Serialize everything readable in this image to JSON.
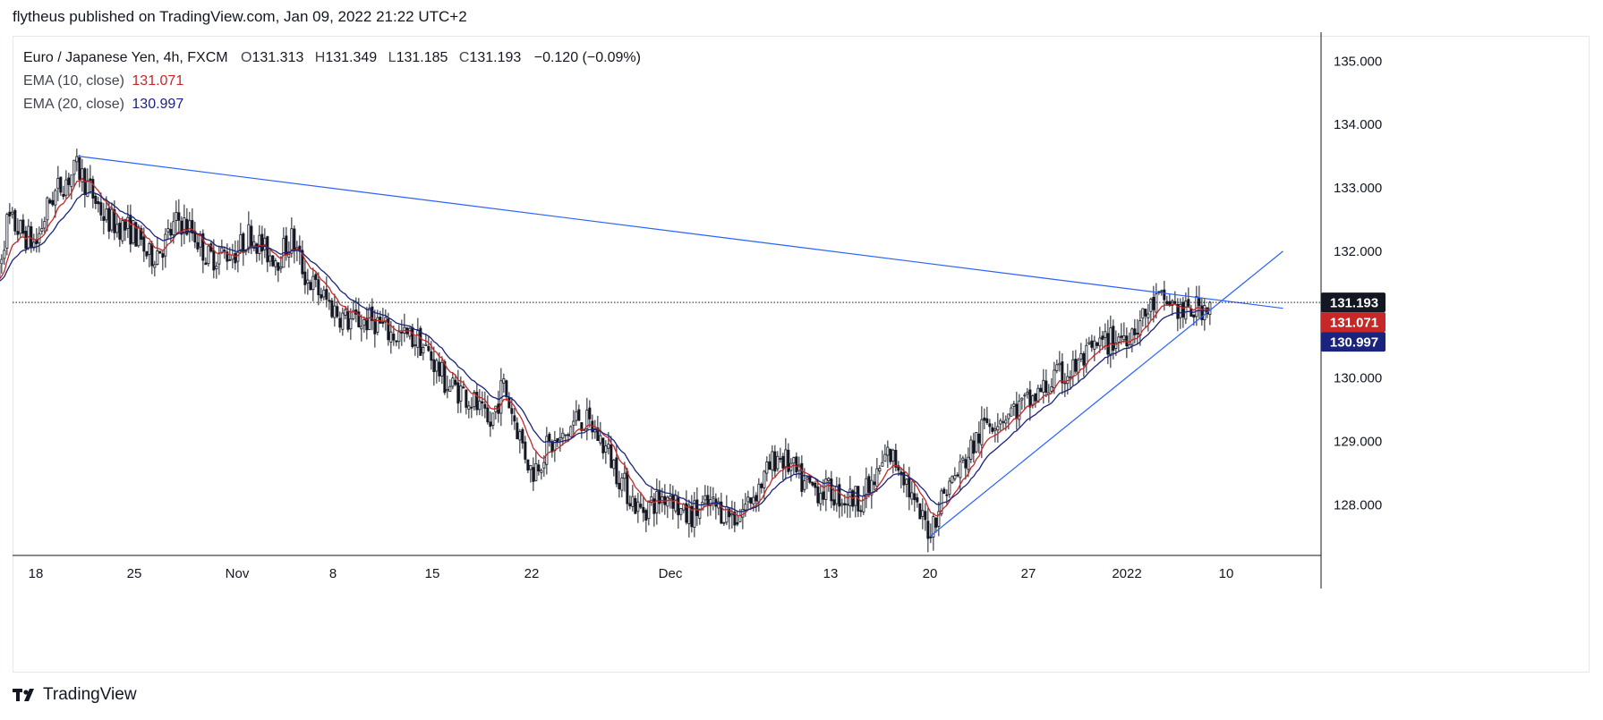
{
  "header": {
    "published_by": "flytheus published on TradingView.com, Jan 09, 2022 21:22 UTC+2"
  },
  "legend": {
    "symbol": "Euro / Japanese Yen, 4h, FXCM",
    "ohlc": {
      "o_label": "O",
      "o": "131.313",
      "h_label": "H",
      "h": "131.349",
      "l_label": "L",
      "l": "131.185",
      "c_label": "C",
      "c": "131.193",
      "change": "−0.120 (−0.09%)"
    },
    "ema10": {
      "label": "EMA (10, close)",
      "value": "131.071"
    },
    "ema20": {
      "label": "EMA (20, close)",
      "value": "130.997"
    }
  },
  "footer": {
    "brand": "TradingView",
    "logo": "tradingview-logo-icon"
  },
  "colors": {
    "candle": "#131722",
    "ema10": "#c62828",
    "ema20": "#1a237e",
    "trendline": "#2962ff",
    "last_price_bg": "#131722"
  },
  "chart_data": {
    "type": "candlestick",
    "timeframe": "4h",
    "x_ticks": [
      "18",
      "25",
      "Nov",
      "8",
      "15",
      "22",
      "Dec",
      "13",
      "20",
      "27",
      "2022",
      "10"
    ],
    "x_tick_dates": [
      "2021-10-18",
      "2021-10-25",
      "2021-11-01",
      "2021-11-08",
      "2021-11-15",
      "2021-11-22",
      "2021-12-01",
      "2021-12-13",
      "2021-12-20",
      "2021-12-27",
      "2022-01-03",
      "2022-01-10"
    ],
    "y_ticks": [
      "135.000",
      "134.000",
      "133.000",
      "132.000",
      "130.000",
      "129.000",
      "128.000"
    ],
    "ylim": [
      127.2,
      135.4
    ],
    "last_price": "131.193",
    "price_labels": [
      {
        "name": "last",
        "value": "131.193"
      },
      {
        "name": "ema10",
        "value": "131.071"
      },
      {
        "name": "ema20",
        "value": "130.997"
      }
    ],
    "close_path": [
      [
        "2021-10-15",
        131.3
      ],
      [
        "2021-10-16",
        132.5
      ],
      [
        "2021-10-18",
        132.1
      ],
      [
        "2021-10-19",
        132.8
      ],
      [
        "2021-10-20",
        133.1
      ],
      [
        "2021-10-21",
        133.3
      ],
      [
        "2021-10-22",
        132.9
      ],
      [
        "2021-10-23",
        132.5
      ],
      [
        "2021-10-25",
        132.3
      ],
      [
        "2021-10-26",
        131.9
      ],
      [
        "2021-10-27",
        132.1
      ],
      [
        "2021-10-28",
        132.5
      ],
      [
        "2021-10-29",
        132.3
      ],
      [
        "2021-10-30",
        131.9
      ],
      [
        "2021-11-01",
        132.0
      ],
      [
        "2021-11-02",
        132.3
      ],
      [
        "2021-11-03",
        132.0
      ],
      [
        "2021-11-04",
        131.9
      ],
      [
        "2021-11-05",
        132.2
      ],
      [
        "2021-11-06",
        131.6
      ],
      [
        "2021-11-08",
        131.1
      ],
      [
        "2021-11-09",
        130.9
      ],
      [
        "2021-11-11",
        130.9
      ],
      [
        "2021-11-12",
        130.7
      ],
      [
        "2021-11-14",
        130.6
      ],
      [
        "2021-11-15",
        130.3
      ],
      [
        "2021-11-16",
        129.9
      ],
      [
        "2021-11-17",
        129.8
      ],
      [
        "2021-11-18",
        129.6
      ],
      [
        "2021-11-19",
        129.2
      ],
      [
        "2021-11-20",
        129.9
      ],
      [
        "2021-11-22",
        128.5
      ],
      [
        "2021-11-23",
        128.9
      ],
      [
        "2021-11-24",
        129.0
      ],
      [
        "2021-11-25",
        129.4
      ],
      [
        "2021-11-26",
        129.2
      ],
      [
        "2021-11-27",
        128.8
      ],
      [
        "2021-11-28",
        128.3
      ],
      [
        "2021-11-29",
        127.9
      ],
      [
        "2021-12-01",
        128.2
      ],
      [
        "2021-12-02",
        127.8
      ],
      [
        "2021-12-03",
        127.9
      ],
      [
        "2021-12-04",
        128.0
      ],
      [
        "2021-12-06",
        127.8
      ],
      [
        "2021-12-07",
        128.1
      ],
      [
        "2021-12-08",
        128.4
      ],
      [
        "2021-12-09",
        128.8
      ],
      [
        "2021-12-10",
        128.6
      ],
      [
        "2021-12-11",
        128.3
      ],
      [
        "2021-12-13",
        128.2
      ],
      [
        "2021-12-14",
        128.1
      ],
      [
        "2021-12-15",
        128.1
      ],
      [
        "2021-12-16",
        128.3
      ],
      [
        "2021-12-17",
        128.8
      ],
      [
        "2021-12-18",
        128.6
      ],
      [
        "2021-12-19",
        127.9
      ],
      [
        "2021-12-20",
        127.6
      ],
      [
        "2021-12-21",
        128.2
      ],
      [
        "2021-12-22",
        128.5
      ],
      [
        "2021-12-23",
        128.9
      ],
      [
        "2021-12-24",
        129.3
      ],
      [
        "2021-12-25",
        129.4
      ],
      [
        "2021-12-27",
        129.6
      ],
      [
        "2021-12-28",
        129.8
      ],
      [
        "2021-12-29",
        130.0
      ],
      [
        "2021-12-30",
        130.1
      ],
      [
        "2021-12-31",
        130.3
      ],
      [
        "2022-01-01",
        130.5
      ],
      [
        "2022-01-03",
        130.7
      ],
      [
        "2022-01-04",
        130.9
      ],
      [
        "2022-01-05",
        131.2
      ],
      [
        "2022-01-06",
        131.2
      ],
      [
        "2022-01-07",
        131.0
      ],
      [
        "2022-01-08",
        131.1
      ],
      [
        "2022-01-09",
        131.193
      ]
    ],
    "candle_high": 133.5,
    "candle_low": 127.4,
    "trendlines": [
      {
        "from": [
          "2021-10-21",
          133.5
        ],
        "to": [
          "2022-01-14",
          131.1
        ],
        "color": "#2962ff"
      },
      {
        "from": [
          "2021-12-20",
          127.5
        ],
        "to": [
          "2022-01-14",
          132.0
        ],
        "color": "#2962ff"
      }
    ],
    "grid": false
  }
}
